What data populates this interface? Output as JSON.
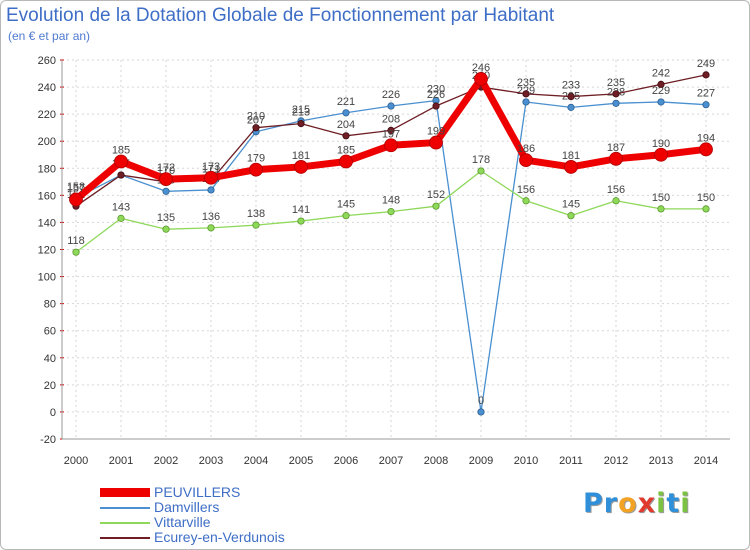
{
  "title": "Evolution de la Dotation Globale de Fonctionnement par Habitant",
  "subtitle": "(en € et par an)",
  "brand": {
    "text": "Proxiti",
    "letters": [
      {
        "ch": "P",
        "color": "#2f8fd8"
      },
      {
        "ch": "r",
        "color": "#2f8fd8"
      },
      {
        "ch": "o",
        "color": "#f2a323"
      },
      {
        "ch": "x",
        "color": "#e03a2f"
      },
      {
        "ch": "i",
        "color": "#7cc242"
      },
      {
        "ch": "t",
        "color": "#2f8fd8"
      },
      {
        "ch": "i",
        "color": "#7cc242"
      }
    ]
  },
  "chart_data": {
    "type": "line",
    "title": "Evolution de la Dotation Globale de Fonctionnement par Habitant",
    "subtitle": "(en € et par an)",
    "xlabel": "",
    "ylabel": "",
    "x": [
      "2000",
      "2001",
      "2002",
      "2003",
      "2004",
      "2005",
      "2006",
      "2007",
      "2008",
      "2009",
      "2010",
      "2011",
      "2012",
      "2013",
      "2014"
    ],
    "ylim": [
      -20,
      260
    ],
    "yticks": [
      -20,
      0,
      20,
      40,
      60,
      80,
      100,
      120,
      140,
      160,
      180,
      200,
      220,
      240,
      260
    ],
    "grid": true,
    "legend_position": "bottom-left",
    "series": [
      {
        "name": "Damvillers",
        "color": "#4a90d0",
        "values": [
          158,
          175,
          163,
          164,
          207,
          215,
          221,
          226,
          230,
          0,
          229,
          225,
          228,
          229,
          227
        ],
        "labels": [
          "158",
          "175",
          "163",
          "164",
          "207",
          "215",
          "221",
          "226",
          "230",
          "0",
          "229",
          "225",
          "228",
          "229",
          "227"
        ]
      },
      {
        "name": "Vittarville",
        "color": "#8ed85a",
        "values": [
          118,
          143,
          135,
          136,
          138,
          141,
          145,
          148,
          152,
          178,
          156,
          145,
          156,
          150,
          150
        ],
        "labels": [
          "118",
          "143",
          "135",
          "136",
          "138",
          "141",
          "145",
          "148",
          "152",
          "178",
          "156",
          "145",
          "156",
          "150",
          "150"
        ]
      },
      {
        "name": "Ecurey-en-Verdunois",
        "color": "#6e1e24",
        "values": [
          152,
          175,
          170,
          171,
          210,
          213,
          204,
          208,
          226,
          240,
          235,
          233,
          235,
          242,
          249
        ],
        "labels": [
          "152",
          "175",
          "170",
          "171",
          "210",
          "213",
          "204",
          "208",
          "226",
          "240",
          "235",
          "233",
          "235",
          "242",
          "249"
        ]
      },
      {
        "name": "PEUVILLERS",
        "color": "#ee0000",
        "values": [
          157,
          185,
          172,
          173,
          179,
          181,
          185,
          197,
          199,
          246,
          186,
          181,
          187,
          190,
          194
        ],
        "labels": [
          "157",
          "185",
          "172",
          "173",
          "179",
          "181",
          "185",
          "197",
          "199",
          "246",
          "186",
          "181",
          "187",
          "190",
          "194"
        ]
      }
    ],
    "legend": [
      "PEUVILLERS",
      "Damvillers",
      "Vittarville",
      "Ecurey-en-Verdunois"
    ]
  }
}
